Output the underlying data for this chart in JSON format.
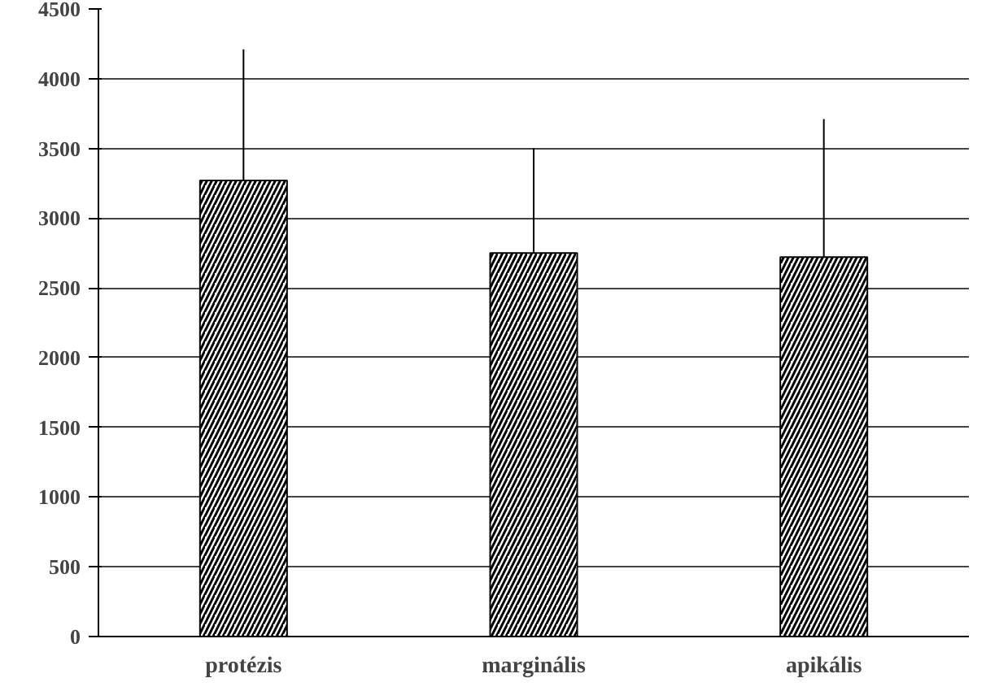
{
  "chart_data": {
    "type": "bar",
    "categories": [
      "protézis",
      "marginális",
      "apikális"
    ],
    "values": [
      3270,
      2750,
      2720
    ],
    "errors": [
      [
        2290,
        4210
      ],
      [
        1950,
        3500
      ],
      [
        1880,
        3710
      ]
    ],
    "color": "#ffffff",
    "ylim": [
      0,
      4500
    ],
    "yticks": [
      0,
      500,
      1000,
      1500,
      2000,
      2500,
      3000,
      3500,
      4000,
      4500
    ],
    "grid": "y"
  }
}
